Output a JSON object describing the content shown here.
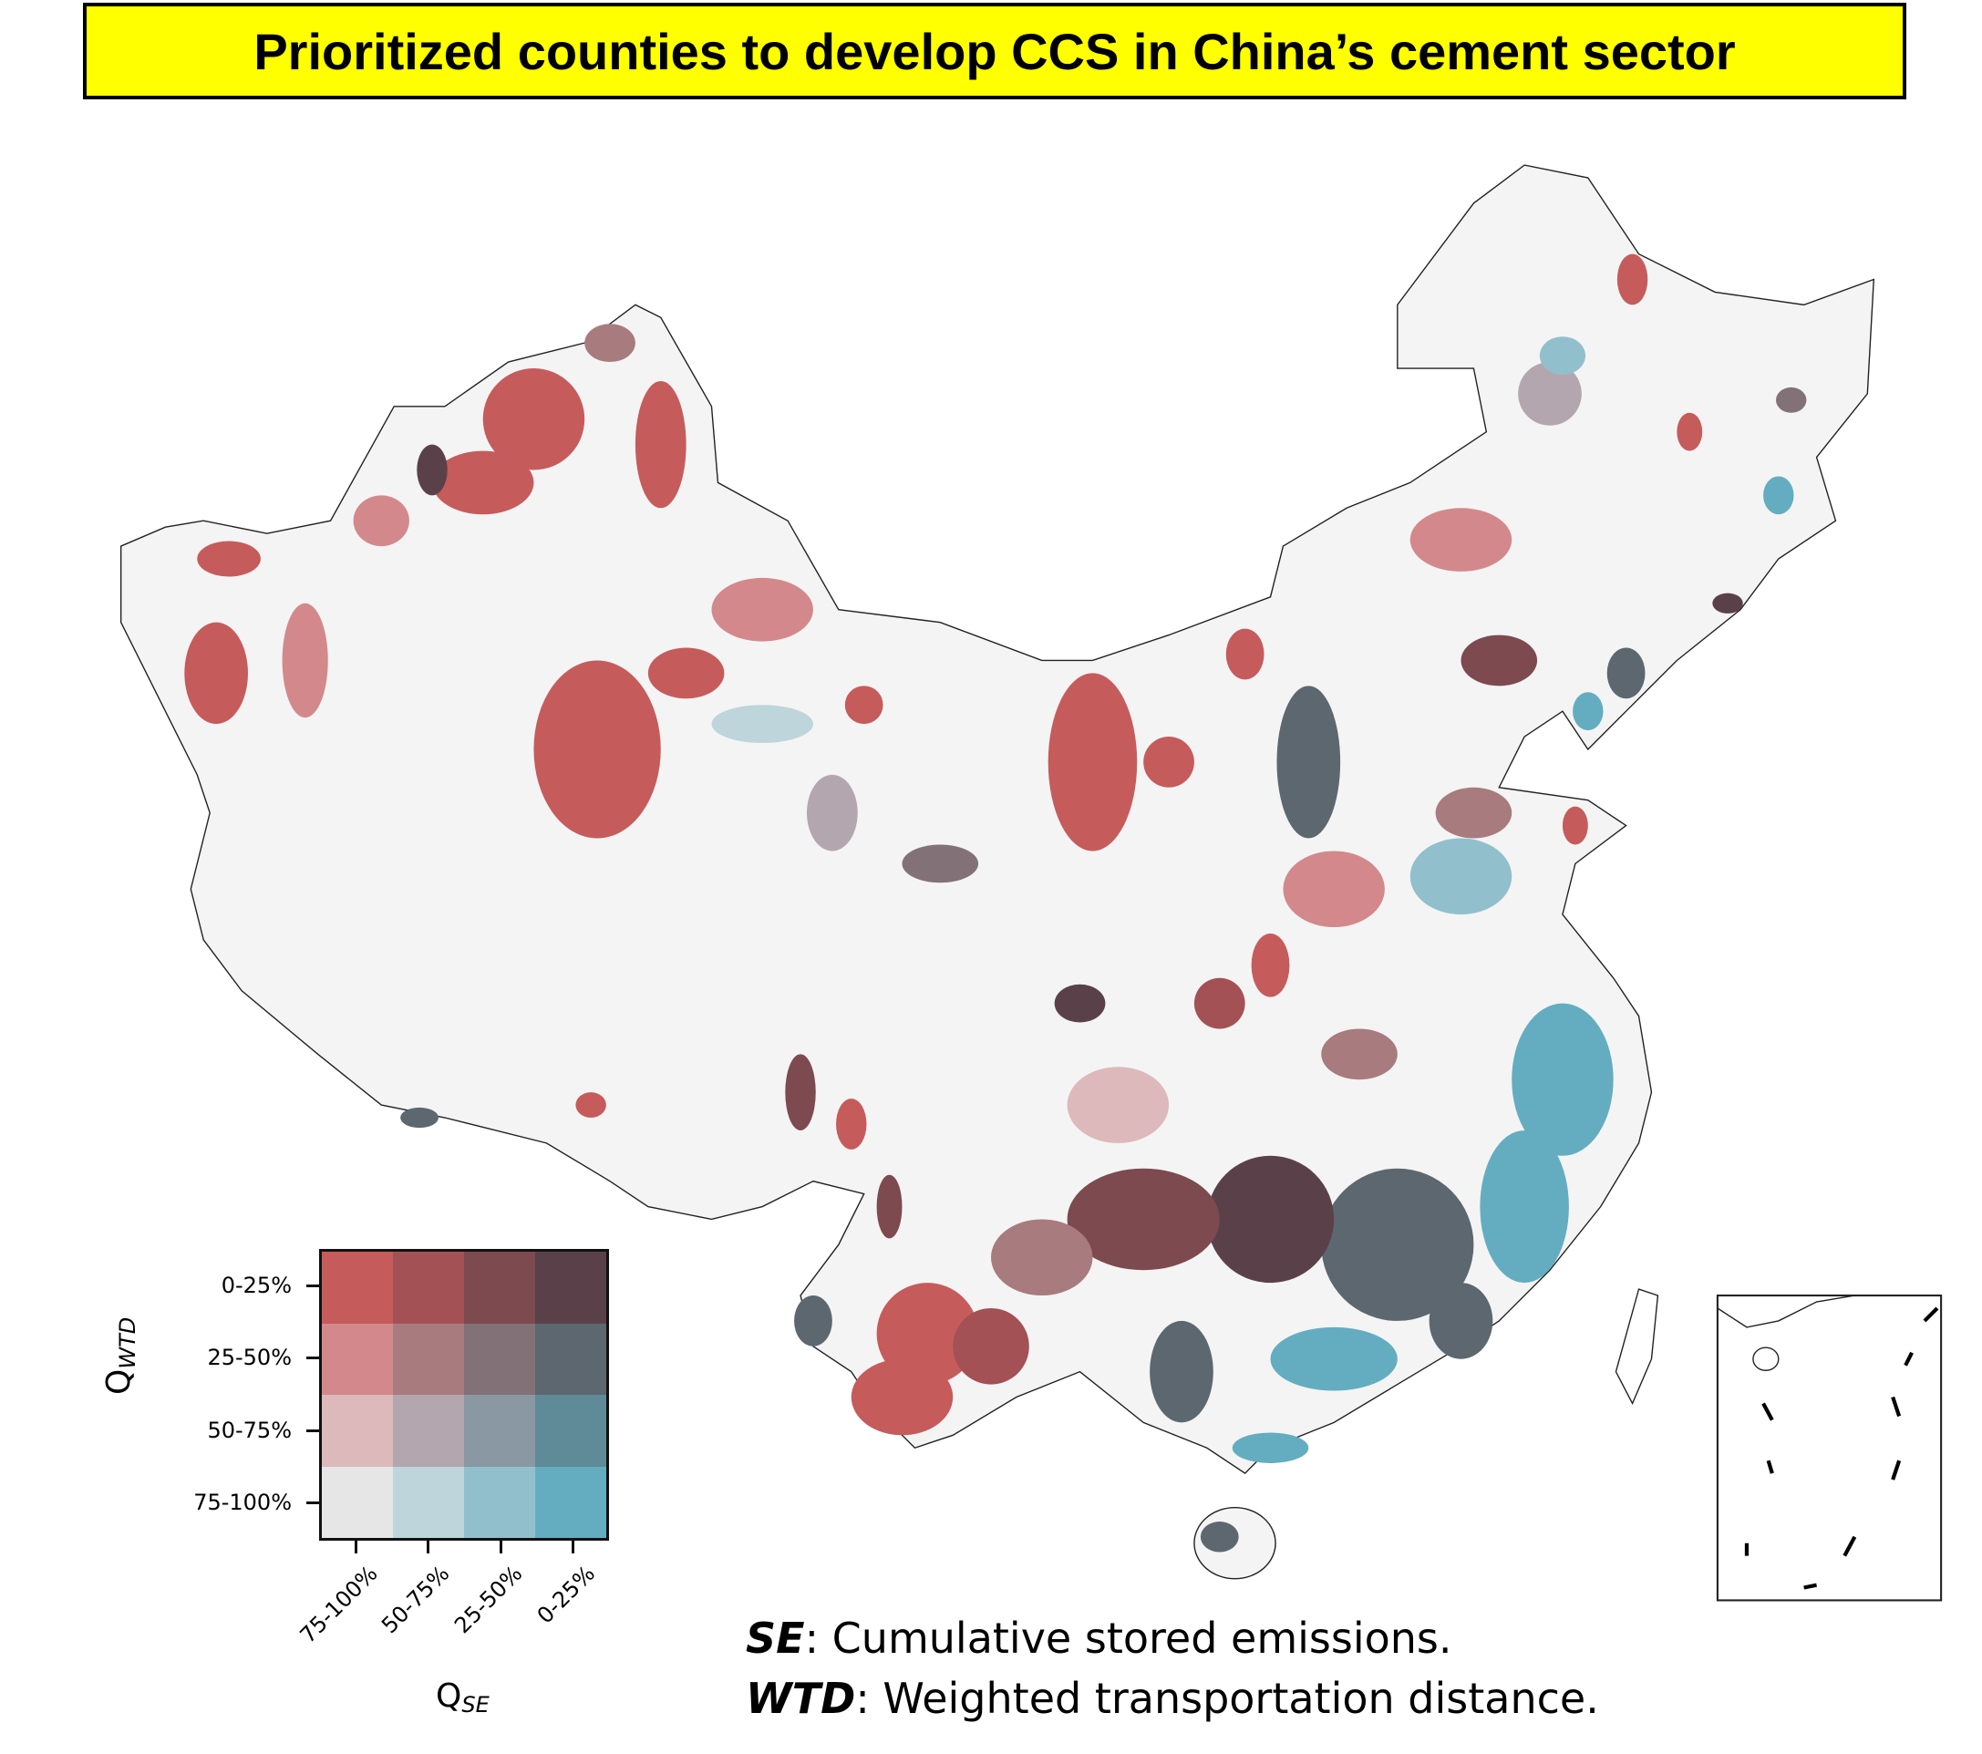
{
  "title": "Prioritized counties to develop CCS in China’s cement sector",
  "chart_data": {
    "type": "heatmap",
    "title": "Prioritized counties to develop CCS in China’s cement sector",
    "map_type": "bivariate choropleth of China counties",
    "legend": {
      "xlabel_base": "Q",
      "xlabel_sub": "SE",
      "ylabel_base": "Q",
      "ylabel_sub": "WTD",
      "x_ticks": [
        "75-100%",
        "50-75%",
        "25-50%",
        "0-25%"
      ],
      "y_ticks": [
        "0-25%",
        "25-50%",
        "50-75%",
        "75-100%"
      ],
      "colors": [
        [
          "#c65b5c",
          "#a35155",
          "#7c4a4f",
          "#5a4149"
        ],
        [
          "#d3898b",
          "#a87b7e",
          "#837178",
          "#5d6770"
        ],
        [
          "#ddb9bb",
          "#b3a6ae",
          "#8a98a3",
          "#5f8a98"
        ],
        [
          "#e6e6e6",
          "#bdd5db",
          "#91c0cc",
          "#64adc0"
        ]
      ],
      "placement": "bottom-left"
    },
    "base_color": "#f4f4f4"
  },
  "notes": [
    {
      "term": "SE",
      "text": ": Cumulative stored emissions."
    },
    {
      "term": "WTD",
      "text": ": Weighted transportation distance."
    }
  ]
}
